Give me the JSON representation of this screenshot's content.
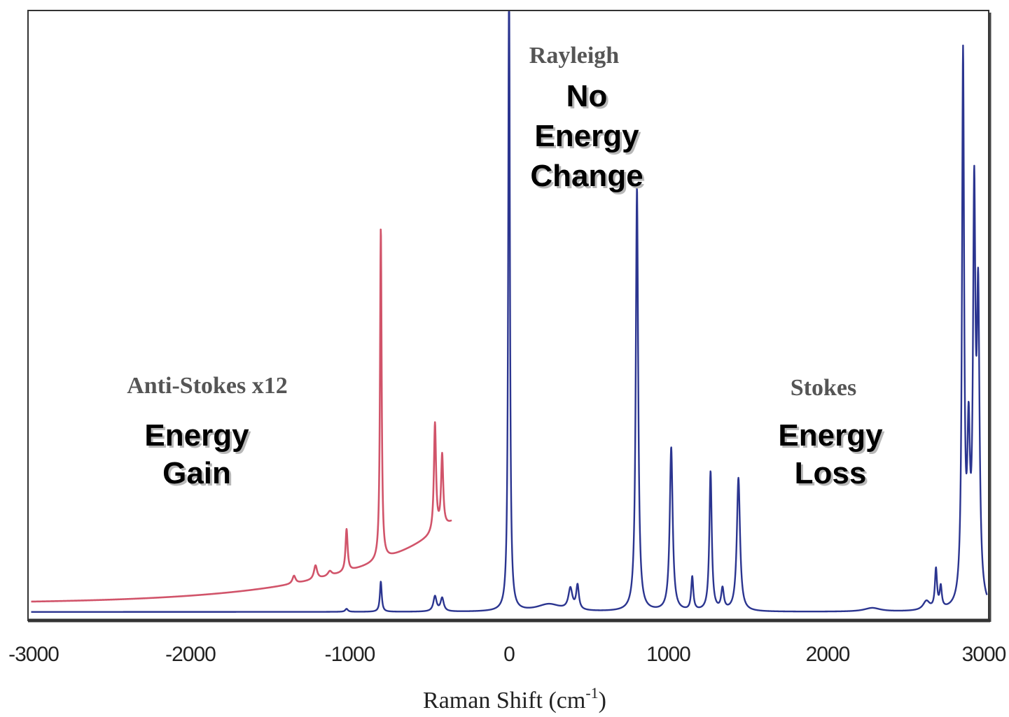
{
  "chart_data": {
    "type": "line",
    "title": "",
    "xlabel": "Raman Shift (cm",
    "xlabel_sup": "-1",
    "xlabel_end": ")",
    "ylabel": "",
    "xlim": [
      -3000,
      3000
    ],
    "ylim": [
      0,
      100
    ],
    "x_ticks": [
      {
        "value": -3000,
        "label": "-3000"
      },
      {
        "value": -2000,
        "label": "-2000"
      },
      {
        "value": -1000,
        "label": "-1000"
      },
      {
        "value": 0,
        "label": "0"
      },
      {
        "value": 1000,
        "label": "1000"
      },
      {
        "value": 2000,
        "label": "2000"
      },
      {
        "value": 3000,
        "label": "3000"
      }
    ],
    "grid": false,
    "legend": "none",
    "series": [
      {
        "color": "#2b3590",
        "baseline": 0.6,
        "range": [
          -3000,
          3000
        ],
        "peaks": [
          {
            "x": -1020,
            "h": 0.5,
            "w": 10
          },
          {
            "x": -805,
            "h": 5,
            "w": 7
          },
          {
            "x": -465,
            "h": 2.5,
            "w": 12
          },
          {
            "x": -420,
            "h": 2.2,
            "w": 12
          },
          {
            "x": 0,
            "h": 110,
            "w": 6
          },
          {
            "x": 250,
            "h": 1.2,
            "w": 90
          },
          {
            "x": 385,
            "h": 3.5,
            "w": 15
          },
          {
            "x": 430,
            "h": 4,
            "w": 10
          },
          {
            "x": 803,
            "h": 70,
            "w": 9
          },
          {
            "x": 1018,
            "h": 27,
            "w": 11
          },
          {
            "x": 1150,
            "h": 5.5,
            "w": 8
          },
          {
            "x": 1265,
            "h": 23,
            "w": 9
          },
          {
            "x": 1340,
            "h": 3.5,
            "w": 10
          },
          {
            "x": 1440,
            "h": 22,
            "w": 12
          },
          {
            "x": 2280,
            "h": 0.6,
            "w": 60
          },
          {
            "x": 2620,
            "h": 1.5,
            "w": 25
          },
          {
            "x": 2680,
            "h": 6.5,
            "w": 8
          },
          {
            "x": 2710,
            "h": 3.5,
            "w": 8
          },
          {
            "x": 2850,
            "h": 90,
            "w": 8
          },
          {
            "x": 2885,
            "h": 25,
            "w": 10
          },
          {
            "x": 2920,
            "h": 64,
            "w": 9
          },
          {
            "x": 2945,
            "h": 48,
            "w": 10
          }
        ]
      },
      {
        "name": "Anti-Stokes x12",
        "color": "#d1546a",
        "range": [
          -3000,
          -360
        ],
        "base_level": 2.0,
        "exp_amp": 13.4,
        "exp_tau": 700,
        "peaks": [
          {
            "x": -1350,
            "h": 1.3,
            "w": 12
          },
          {
            "x": -1215,
            "h": 2.3,
            "w": 12
          },
          {
            "x": -1125,
            "h": 0.8,
            "w": 15
          },
          {
            "x": -1020,
            "h": 7.0,
            "w": 8
          },
          {
            "x": -805,
            "h": 55,
            "w": 6
          },
          {
            "x": -465,
            "h": 18,
            "w": 8
          },
          {
            "x": -420,
            "h": 12,
            "w": 8
          }
        ]
      }
    ],
    "annotations": {
      "rayleigh": "Rayleigh",
      "rayleigh_desc": [
        "No",
        "Energy",
        "Change"
      ],
      "anti_stokes": "Anti-Stokes x12",
      "anti_stokes_desc": [
        "Energy",
        "Gain"
      ],
      "stokes": "Stokes",
      "stokes_desc": [
        "Energy",
        "Loss"
      ]
    }
  }
}
